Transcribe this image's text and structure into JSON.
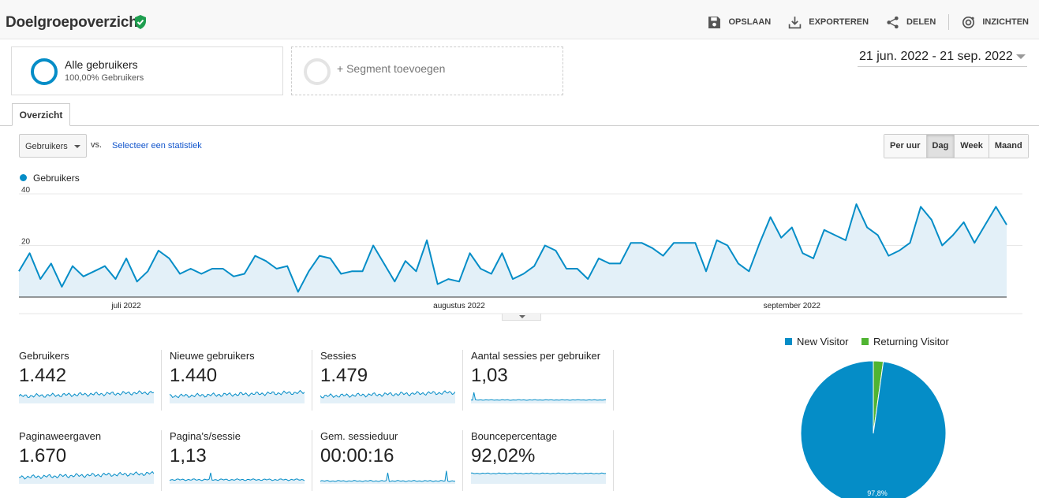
{
  "header": {
    "title": "Doelgroepoverzicht",
    "actions": [
      {
        "label": "OPSLAAN",
        "icon": "save-icon"
      },
      {
        "label": "EXPORTEREN",
        "icon": "download-icon"
      },
      {
        "label": "DELEN",
        "icon": "share-icon"
      },
      {
        "label": "INZICHTEN",
        "icon": "insights-icon"
      }
    ]
  },
  "segments": {
    "active": {
      "name": "Alle gebruikers",
      "sub": "100,00% Gebruikers"
    },
    "add_label": "+ Segment toevoegen"
  },
  "date_range": "21 jun. 2022 - 21 sep. 2022",
  "tabs": [
    {
      "label": "Overzicht",
      "active": true
    }
  ],
  "controls": {
    "metric": "Gebruikers",
    "vs": "vs.",
    "select_stat": "Selecteer een statistiek",
    "granularity": [
      {
        "label": "Per uur",
        "active": false
      },
      {
        "label": "Dag",
        "active": true
      },
      {
        "label": "Week",
        "active": false
      },
      {
        "label": "Maand",
        "active": false
      }
    ]
  },
  "chart_data": {
    "type": "area",
    "series": [
      {
        "name": "Gebruikers",
        "values": [
          10,
          17,
          7,
          13,
          4,
          12,
          8,
          10,
          12,
          7,
          15,
          6,
          10,
          18,
          15,
          9,
          11,
          9,
          11,
          11,
          8,
          9,
          16,
          14,
          11,
          12,
          2,
          10,
          16,
          15,
          9,
          10,
          10,
          20,
          13,
          6,
          14,
          10,
          22,
          5,
          7,
          6,
          17,
          11,
          9,
          17,
          7,
          9,
          12,
          20,
          18,
          11,
          11,
          7,
          15,
          13,
          13,
          21,
          21,
          19,
          16,
          21,
          21,
          21,
          10,
          22,
          20,
          13,
          10,
          21,
          31,
          23,
          27,
          17,
          15,
          26,
          24,
          22,
          36,
          27,
          24,
          16,
          18,
          21,
          35,
          30,
          20,
          24,
          29,
          21,
          28,
          35,
          28
        ]
      }
    ],
    "x_start": "2022-06-21",
    "x_end": "2022-09-21",
    "x_ticks": [
      "juli 2022",
      "augustus 2022",
      "september 2022"
    ],
    "y_ticks": [
      20,
      40
    ],
    "ylim": [
      0,
      40
    ],
    "color": "#058dc7",
    "fill": "#e3f0f8"
  },
  "scorecards": [
    {
      "label": "Gebruikers",
      "value": "1.442"
    },
    {
      "label": "Nieuwe gebruikers",
      "value": "1.440"
    },
    {
      "label": "Sessies",
      "value": "1.479"
    },
    {
      "label": "Aantal sessies per gebruiker",
      "value": "1,03"
    },
    {
      "label": "Paginaweergaven",
      "value": "1.670"
    },
    {
      "label": "Pagina's/sessie",
      "value": "1,13"
    },
    {
      "label": "Gem. sessieduur",
      "value": "00:00:16"
    },
    {
      "label": "Bouncepercentage",
      "value": "92,02%"
    }
  ],
  "pie": {
    "legend": [
      {
        "label": "New Visitor",
        "color": "#058dc7"
      },
      {
        "label": "Returning Visitor",
        "color": "#50b432"
      }
    ],
    "slices": [
      {
        "name": "New Visitor",
        "value": 97.8,
        "label": "97,8%",
        "color": "#058dc7"
      },
      {
        "name": "Returning Visitor",
        "value": 2.2,
        "color": "#50b432"
      }
    ]
  },
  "colors": {
    "accent": "#058dc7",
    "returning": "#50b432",
    "verified": "#1e9e4f"
  }
}
